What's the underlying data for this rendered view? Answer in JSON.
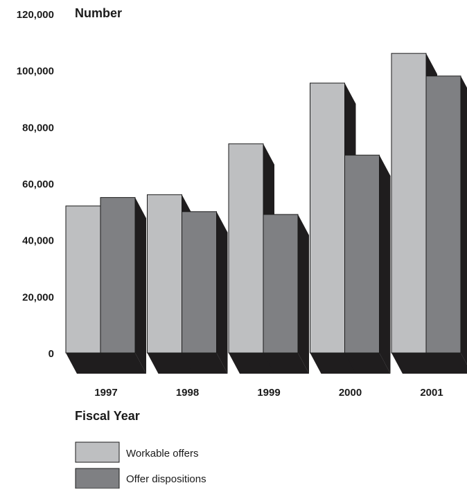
{
  "chart_data": {
    "type": "bar",
    "ylabel": "Number",
    "xlabel": "Fiscal Year",
    "ylim": [
      0,
      120000
    ],
    "yticks": [
      "0",
      "20,000",
      "40,000",
      "60,000",
      "80,000",
      "100,000",
      "120,000"
    ],
    "categories": [
      "1997",
      "1998",
      "1999",
      "2000",
      "2001"
    ],
    "series": [
      {
        "name": "Workable offers",
        "values": [
          52000,
          56000,
          74000,
          95500,
          106000
        ]
      },
      {
        "name": "Offer dispositions",
        "values": [
          55000,
          50000,
          49000,
          70000,
          98000
        ]
      }
    ],
    "legend_position": "bottom-left",
    "grid": false,
    "colors": {
      "workable": "#bebfc1",
      "dispositions": "#7f8083",
      "shadow": "#1f1d1e",
      "outline": "#1a1a1a"
    }
  }
}
